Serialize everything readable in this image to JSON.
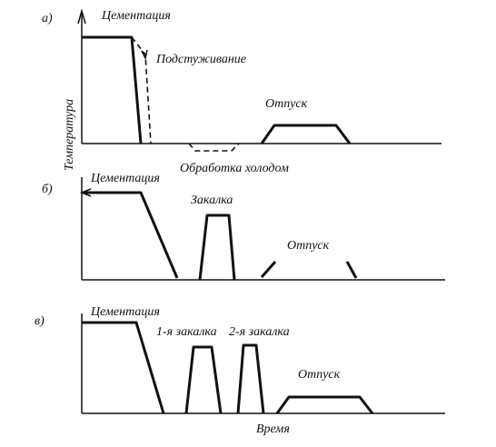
{
  "axis": {
    "y_label": "Температура",
    "x_label": "Время"
  },
  "panels": [
    {
      "label": "а)",
      "labels": [
        "Цементация",
        "Подстуживание",
        "Отпуск",
        "Обработка холодом"
      ]
    },
    {
      "label": "б)",
      "labels": [
        "Цементация",
        "Закалка",
        "Отпуск"
      ]
    },
    {
      "label": "в)",
      "labels": [
        "Цементация",
        "1-я закалка",
        "2-я закалка",
        "Отпуск"
      ]
    }
  ]
}
